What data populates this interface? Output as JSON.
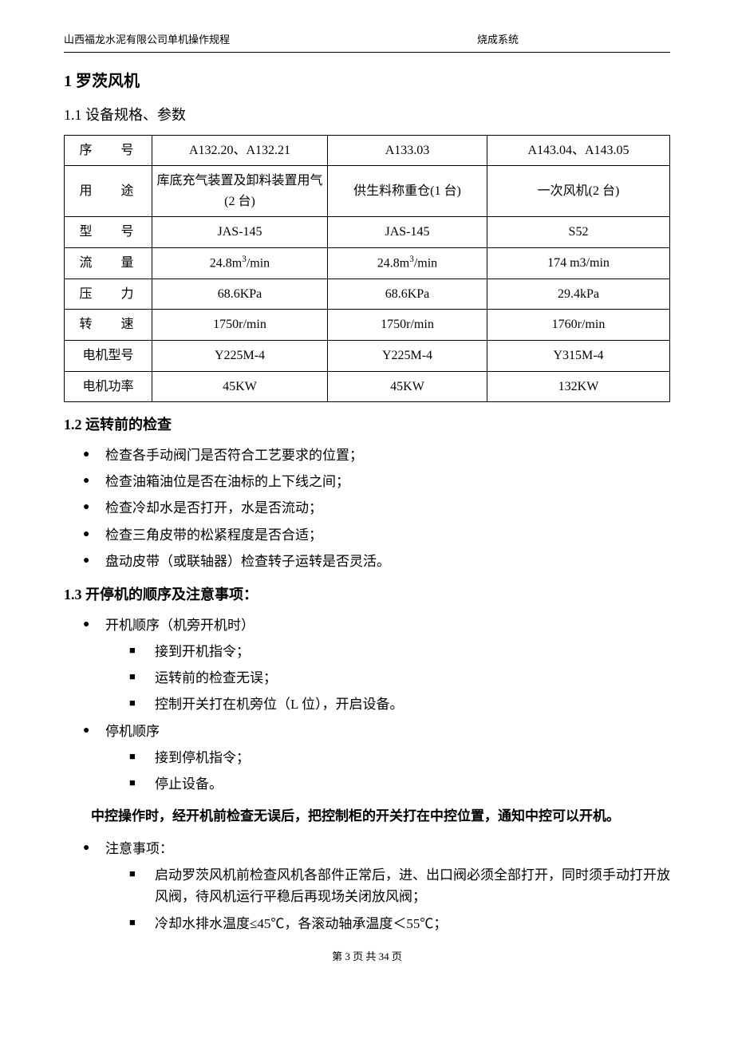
{
  "header": {
    "left": "山西福龙水泥有限公司单机操作规程",
    "center": "烧成系统"
  },
  "h1": "1 罗茨风机",
  "sec11_title": "1.1 设备规格、参数",
  "table": {
    "rows": [
      {
        "label": "序  号",
        "c1": "A132.20、A132.21",
        "c2": "A133.03",
        "c3": "A143.04、A143.05"
      },
      {
        "label": "用  途",
        "c1": "库底充气装置及卸料装置用气(2 台)",
        "c2": "供生料称重仓(1 台)",
        "c3": "一次风机(2 台)"
      },
      {
        "label": "型  号",
        "c1": "JAS-145",
        "c2": "JAS-145",
        "c3": "S52"
      },
      {
        "label": "流  量",
        "c1": "24.8m³/min",
        "c2": "24.8m³/min",
        "c3": "174 m3/min"
      },
      {
        "label": "压  力",
        "c1": "68.6KPa",
        "c2": "68.6KPa",
        "c3": "29.4kPa"
      },
      {
        "label": "转  速",
        "c1": "1750r/min",
        "c2": "1750r/min",
        "c3": "1760r/min"
      },
      {
        "label": "电机型号",
        "c1": "Y225M-4",
        "c2": "Y225M-4",
        "c3": "Y315M-4"
      },
      {
        "label": "电机功率",
        "c1": "45KW",
        "c2": "45KW",
        "c3": "132KW"
      }
    ]
  },
  "sec12_title": "1.2 运转前的检查",
  "sec12_items": [
    "检查各手动阀门是否符合工艺要求的位置；",
    "检查油箱油位是否在油标的上下线之间；",
    "检查冷却水是否打开，水是否流动；",
    "检查三角皮带的松紧程度是否合适；",
    "盘动皮带（或联轴器）检查转子运转是否灵活。"
  ],
  "sec13_title": "1.3 开停机的顺序及注意事项：",
  "sec13_b1": "开机顺序（机旁开机时）",
  "sec13_b1_sub": [
    "接到开机指令；",
    "运转前的检查无误；",
    "控制开关打在机旁位（L 位），开启设备。"
  ],
  "sec13_b2": "停机顺序",
  "sec13_b2_sub": [
    "接到停机指令；",
    "停止设备。"
  ],
  "emph": "中控操作时，经开机前检查无误后，把控制柜的开关打在中控位置，通知中控可以开机。",
  "sec13_b3": "注意事项：",
  "sec13_b3_sub": [
    "启动罗茨风机前检查风机各部件正常后，进、出口阀必须全部打开，同时须手动打开放风阀，待风机运行平稳后再现场关闭放风阀；",
    "冷却水排水温度≤45℃，各滚动轴承温度＜55℃；"
  ],
  "footer": "第 3 页 共 34 页"
}
